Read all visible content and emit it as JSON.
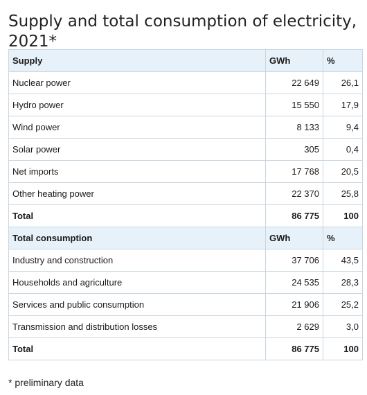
{
  "title": "Supply and total consumption of electricity, 2021*",
  "supply": {
    "header": {
      "label": "Supply",
      "gwh": "GWh",
      "pct": "%"
    },
    "rows": [
      {
        "label": "Nuclear power",
        "gwh": "22 649",
        "pct": "26,1"
      },
      {
        "label": "Hydro power",
        "gwh": "15 550",
        "pct": "17,9"
      },
      {
        "label": "Wind power",
        "gwh": "8 133",
        "pct": "9,4"
      },
      {
        "label": "Solar power",
        "gwh": "305",
        "pct": "0,4"
      },
      {
        "label": "Net imports",
        "gwh": "17 768",
        "pct": "20,5"
      },
      {
        "label": "Other heating power",
        "gwh": "22 370",
        "pct": "25,8"
      }
    ],
    "total": {
      "label": "Total",
      "gwh": "86 775",
      "pct": "100"
    }
  },
  "consumption": {
    "header": {
      "label": "Total consumption",
      "gwh": "GWh",
      "pct": "%"
    },
    "rows": [
      {
        "label": "Industry and construction",
        "gwh": "37 706",
        "pct": "43,5"
      },
      {
        "label": "Households and agriculture",
        "gwh": "24 535",
        "pct": "28,3"
      },
      {
        "label": "Services and public consumption",
        "gwh": "21 906",
        "pct": "25,2"
      },
      {
        "label": "Transmission and distribution losses",
        "gwh": "2 629",
        "pct": "3,0"
      }
    ],
    "total": {
      "label": "Total",
      "gwh": "86 775",
      "pct": "100"
    }
  },
  "footnote": "* preliminary data",
  "colors": {
    "header_bg": "#e7f1f9",
    "border": "#c9d6e0"
  }
}
